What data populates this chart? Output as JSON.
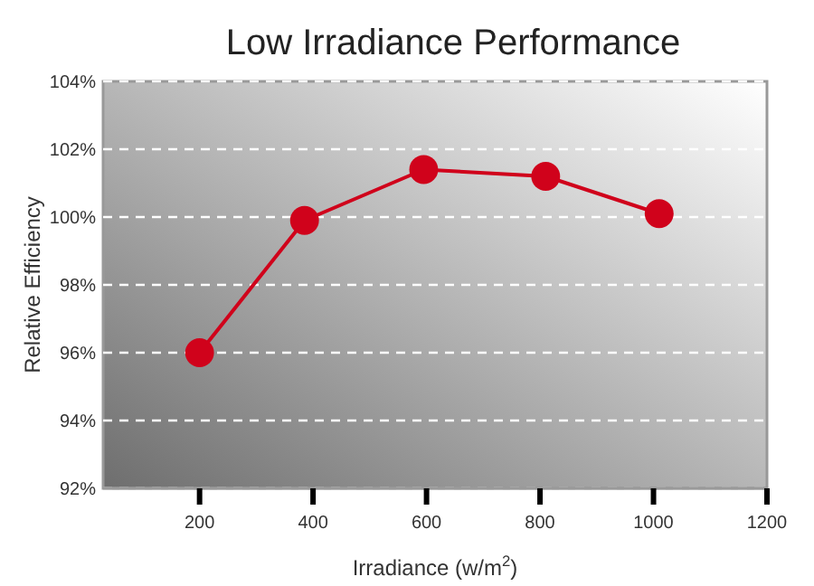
{
  "chart_data": {
    "type": "line",
    "title": "Low Irradiance Performance",
    "xlabel": "Irradiance (w/m$^{2}$)",
    "ylabel": "Relative Efficiency",
    "x": [
      200,
      385,
      595,
      810,
      1010
    ],
    "series": [
      {
        "color": "#d0021b",
        "values": [
          96.0,
          99.9,
          101.4,
          101.2,
          100.1
        ]
      }
    ],
    "xlim": [
      30,
      1200
    ],
    "xticks": [
      200,
      400,
      600,
      800,
      1000,
      1200
    ],
    "ylim": [
      92,
      104
    ],
    "yticks": [
      {
        "value": 92,
        "label": "92%"
      },
      {
        "value": 94,
        "label": "94%"
      },
      {
        "value": 96,
        "label": "96%"
      },
      {
        "value": 98,
        "label": "98%"
      },
      {
        "value": 100,
        "label": "100%"
      },
      {
        "value": 102,
        "label": "102%"
      },
      {
        "value": 104,
        "label": "104%"
      }
    ],
    "grid": "y",
    "marker": "circle",
    "line_style": "solid"
  }
}
